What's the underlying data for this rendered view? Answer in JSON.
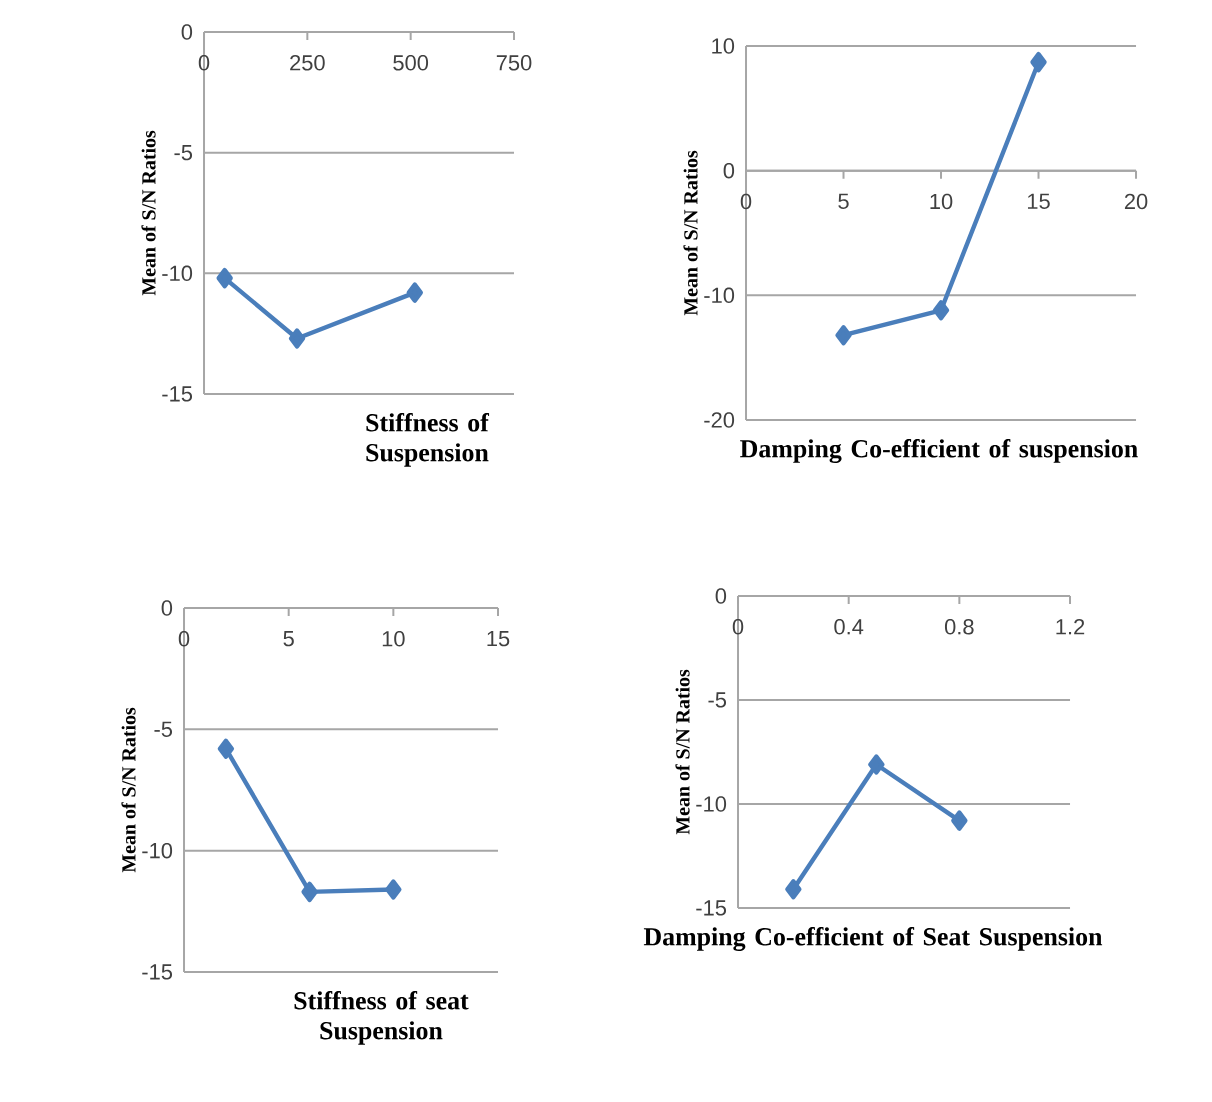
{
  "chart_data": [
    {
      "type": "line",
      "xlabel": "Stiffness of Suspension",
      "ylabel": "Mean of S/N Ratios",
      "x": [
        50,
        225,
        510
      ],
      "values": [
        -10.2,
        -12.7,
        -10.8
      ],
      "color": "#4a7ebb",
      "xlim": [
        0,
        750
      ],
      "ylim": [
        -15,
        0
      ],
      "xticks": [
        0,
        250,
        500,
        750
      ],
      "yticks": [
        0,
        -5,
        -10,
        -15
      ],
      "grid": "y",
      "marker": "diamond"
    },
    {
      "type": "line",
      "xlabel": "Damping  Co-efficient of suspension",
      "ylabel": "Mean of S/N Ratios",
      "x": [
        5,
        10,
        15
      ],
      "values": [
        -13.2,
        -11.2,
        8.7
      ],
      "color": "#4a7ebb",
      "xlim": [
        0,
        20
      ],
      "ylim": [
        -20,
        10
      ],
      "xticks": [
        0,
        5,
        10,
        15,
        20
      ],
      "yticks": [
        10,
        0,
        -10,
        -20
      ],
      "grid": "y",
      "marker": "diamond"
    },
    {
      "type": "line",
      "xlabel": "Stiffness of seat Suspension",
      "ylabel": "Mean  of S/N Ratios",
      "x": [
        2,
        6,
        10
      ],
      "values": [
        -5.8,
        -11.7,
        -11.6
      ],
      "color": "#4a7ebb",
      "xlim": [
        0,
        15
      ],
      "ylim": [
        -15,
        0
      ],
      "xticks": [
        0,
        5,
        10,
        15
      ],
      "yticks": [
        0,
        -5,
        -10,
        -15
      ],
      "grid": "y",
      "marker": "diamond"
    },
    {
      "type": "line",
      "xlabel": "Damping  Co-efficient of Seat Suspension",
      "ylabel": "Mean  of S/N Ratios",
      "x": [
        0.2,
        0.5,
        0.8
      ],
      "values": [
        -14.1,
        -8.1,
        -10.8
      ],
      "color": "#4a7ebb",
      "xlim": [
        0,
        1.2
      ],
      "ylim": [
        -15,
        0
      ],
      "xticks": [
        0,
        0.4,
        0.8,
        1.2
      ],
      "yticks": [
        0,
        -5,
        -10,
        -15
      ],
      "grid": "y",
      "marker": "diamond"
    }
  ]
}
